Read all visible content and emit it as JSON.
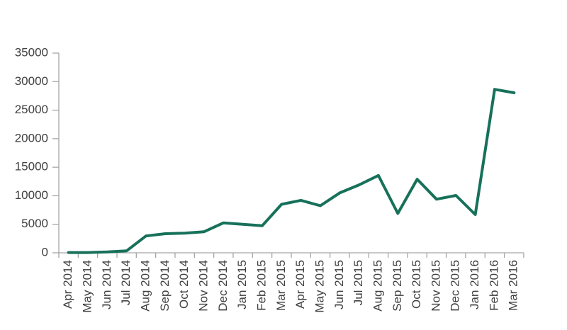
{
  "chart_data": {
    "type": "line",
    "title": "",
    "xlabel": "",
    "ylabel": "",
    "categories": [
      "Apr 2014",
      "May 2014",
      "Jun 2014",
      "Jul 2014",
      "Aug 2014",
      "Sep 2014",
      "Oct 2014",
      "Nov 2014",
      "Dec 2014",
      "Jan 2015",
      "Feb 2015",
      "Mar 2015",
      "Apr 2015",
      "May 2015",
      "Jun 2015",
      "Jul 2015",
      "Aug 2015",
      "Sep 2015",
      "Oct 2015",
      "Nov 2015",
      "Dec 2015",
      "Jan 2016",
      "Feb 2016",
      "Mar 2016"
    ],
    "series": [
      {
        "name": "value",
        "values": [
          50,
          50,
          150,
          350,
          2950,
          3350,
          3450,
          3700,
          5250,
          5000,
          4750,
          8500,
          9200,
          8250,
          10500,
          11900,
          13550,
          6900,
          12900,
          9400,
          10050,
          6700,
          28650,
          28050
        ]
      }
    ],
    "ylim": [
      0,
      35000
    ],
    "ytick_step": 5000,
    "ytick_labels": [
      "0",
      "5000",
      "10000",
      "15000",
      "20000",
      "25000",
      "30000",
      "35000"
    ],
    "grid": false,
    "legend_position": "none",
    "colors": {
      "line": "#17715a",
      "axis": "#a6a6a6",
      "tick": "#a6a6a6",
      "label": "#404040",
      "background": "#ffffff"
    }
  }
}
